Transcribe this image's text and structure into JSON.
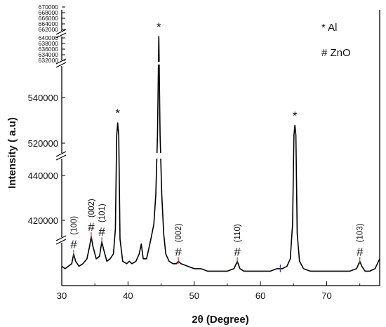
{
  "chart_data": {
    "type": "line",
    "title": "",
    "xlabel": "2θ (Degree)",
    "ylabel": "Intensity ( a.u)",
    "xlim": [
      30,
      78
    ],
    "x_ticks": [
      "30",
      "40",
      "50",
      "60",
      "70"
    ],
    "broken_y_axis": true,
    "y_segments": [
      {
        "ticks": [
          "420000",
          "440000"
        ]
      },
      {
        "ticks": [
          "520000",
          "540000"
        ]
      },
      {
        "ticks": [
          "632000",
          "634000",
          "636000",
          "638000",
          "640000"
        ]
      },
      {
        "ticks": [
          "662000",
          "664000",
          "666000",
          "668000",
          "670000"
        ]
      }
    ],
    "legend": {
      "placement": "top-right",
      "entries": [
        "* Al",
        "# ZnO"
      ]
    },
    "series": [
      {
        "points": [
          [
            30.0,
            7
          ],
          [
            30.5,
            6
          ],
          [
            31.0,
            7
          ],
          [
            31.5,
            8
          ],
          [
            31.8,
            12
          ],
          [
            32.1,
            9
          ],
          [
            32.6,
            7
          ],
          [
            33.2,
            8
          ],
          [
            33.8,
            10
          ],
          [
            34.2,
            15
          ],
          [
            34.45,
            19
          ],
          [
            34.7,
            15
          ],
          [
            35.2,
            10
          ],
          [
            35.7,
            11
          ],
          [
            36.05,
            17
          ],
          [
            36.3,
            14
          ],
          [
            36.8,
            9
          ],
          [
            37.3,
            10
          ],
          [
            37.8,
            12
          ],
          [
            38.1,
            22
          ],
          [
            38.3,
            60
          ],
          [
            38.45,
            65
          ],
          [
            38.6,
            60
          ],
          [
            38.8,
            18
          ],
          [
            39.2,
            9
          ],
          [
            39.8,
            8
          ],
          [
            40.2,
            9
          ],
          [
            40.6,
            8
          ],
          [
            41.2,
            9
          ],
          [
            41.7,
            12
          ],
          [
            42.0,
            16
          ],
          [
            42.3,
            10
          ],
          [
            42.8,
            10
          ],
          [
            43.3,
            16
          ],
          [
            43.6,
            20
          ],
          [
            43.9,
            24
          ],
          [
            44.2,
            36
          ],
          [
            44.45,
            60
          ],
          [
            44.65,
            100
          ],
          [
            44.85,
            60
          ],
          [
            45.1,
            36
          ],
          [
            45.4,
            20
          ],
          [
            45.7,
            12
          ],
          [
            46.2,
            9
          ],
          [
            46.8,
            8
          ],
          [
            47.3,
            8
          ],
          [
            47.6,
            9
          ],
          [
            48.0,
            8
          ],
          [
            49.0,
            7
          ],
          [
            50.0,
            6
          ],
          [
            51.0,
            6
          ],
          [
            52.0,
            5
          ],
          [
            53.0,
            5
          ],
          [
            54.0,
            5
          ],
          [
            55.0,
            5
          ],
          [
            56.0,
            6
          ],
          [
            56.5,
            9
          ],
          [
            56.9,
            6
          ],
          [
            57.5,
            5
          ],
          [
            58.5,
            5
          ],
          [
            59.5,
            5
          ],
          [
            60.5,
            5
          ],
          [
            61.5,
            5
          ],
          [
            62.5,
            6
          ],
          [
            63.3,
            6
          ],
          [
            64.0,
            7
          ],
          [
            64.5,
            10
          ],
          [
            64.85,
            24
          ],
          [
            65.05,
            60
          ],
          [
            65.2,
            64
          ],
          [
            65.35,
            60
          ],
          [
            65.55,
            20
          ],
          [
            65.9,
            9
          ],
          [
            66.5,
            6
          ],
          [
            67.5,
            5
          ],
          [
            68.5,
            5
          ],
          [
            69.5,
            5
          ],
          [
            70.5,
            5
          ],
          [
            71.5,
            5
          ],
          [
            72.5,
            5
          ],
          [
            73.5,
            5
          ],
          [
            74.5,
            6
          ],
          [
            75.0,
            9
          ],
          [
            75.3,
            7
          ],
          [
            75.8,
            5
          ],
          [
            76.5,
            5
          ],
          [
            77.3,
            6
          ],
          [
            78.0,
            10
          ]
        ]
      }
    ],
    "annotations": [
      {
        "text": "*",
        "x": 38.45
      },
      {
        "text": "*",
        "x": 44.65
      },
      {
        "text": "*",
        "x": 65.2
      },
      {
        "text": "#",
        "x": 31.8,
        "label": "(100)"
      },
      {
        "text": "#",
        "x": 34.45,
        "label": "(002)"
      },
      {
        "text": "#",
        "x": 36.05,
        "label": "(101)"
      },
      {
        "text": "#",
        "x": 47.6,
        "label": "(002)"
      },
      {
        "text": "#",
        "x": 56.5,
        "label": "(110)"
      },
      {
        "text": "#",
        "x": 75.0,
        "label": "(103)"
      }
    ],
    "colors": {
      "line": "#000000",
      "zno_marker": "#cc3322",
      "extra_marker": "#3344aa"
    }
  }
}
